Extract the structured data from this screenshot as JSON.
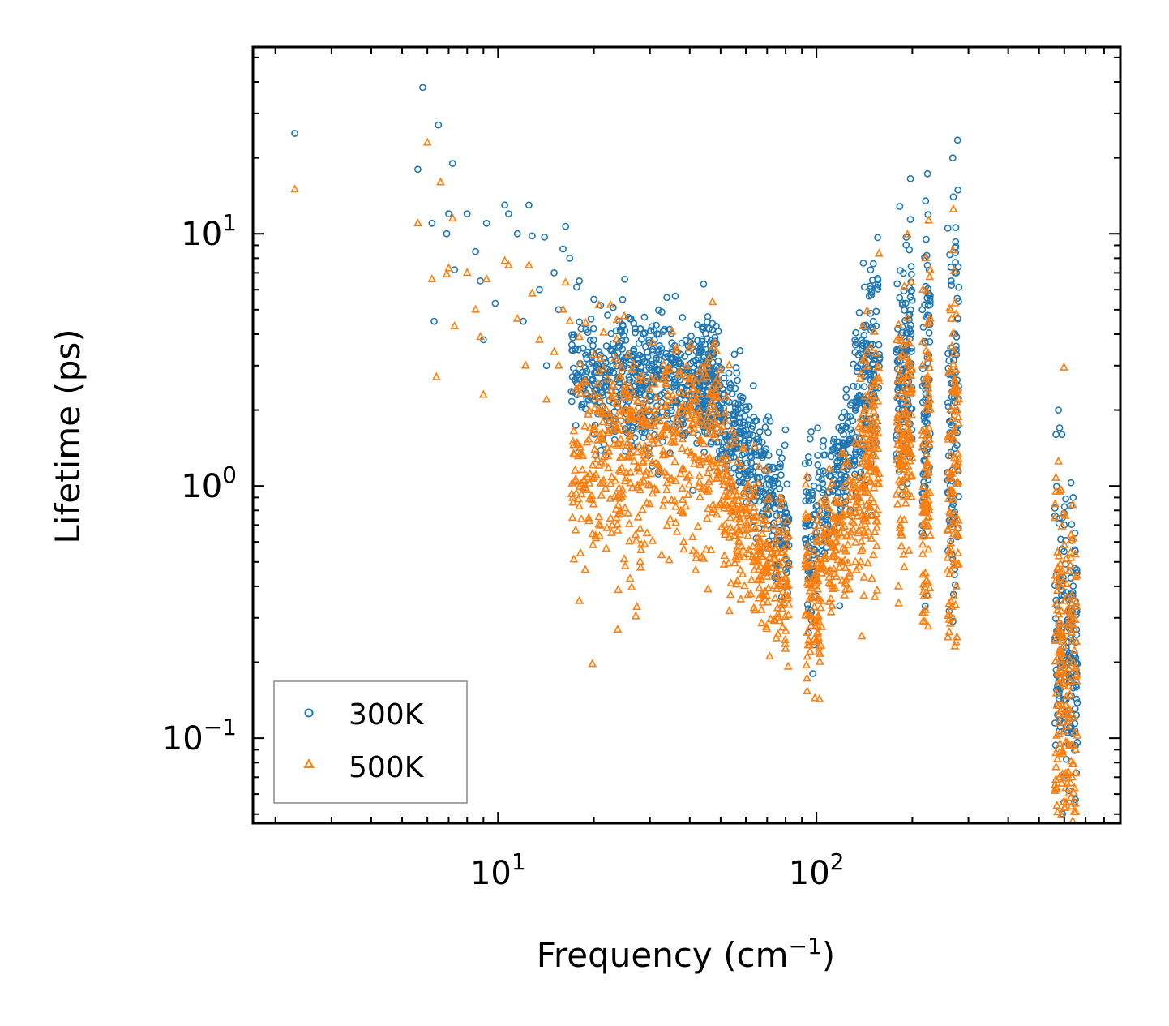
{
  "chart_data": {
    "type": "scatter",
    "xlabel": "Frequency (cm",
    "xlabel_exp": "−1",
    "xlabel_tail": ")",
    "ylabel": "Lifetime (ps)",
    "xscale": "log",
    "yscale": "log",
    "xlim": [
      1.7,
      900
    ],
    "ylim": [
      0.046,
      55
    ],
    "x_ticks": [
      {
        "value": 10,
        "base": "10",
        "exp": "1"
      },
      {
        "value": 100,
        "base": "10",
        "exp": "2"
      }
    ],
    "y_ticks": [
      {
        "value": 0.1,
        "base": "10",
        "exp": "−1"
      },
      {
        "value": 1,
        "base": "10",
        "exp": "0"
      },
      {
        "value": 10,
        "base": "10",
        "exp": "1"
      }
    ],
    "legend": {
      "location": "lower-left"
    },
    "series": [
      {
        "name": "300K",
        "marker": "circle",
        "color": "#1f77b4",
        "points": [
          [
            2.3,
            25
          ],
          [
            5.6,
            18
          ],
          [
            5.8,
            38
          ],
          [
            6.2,
            11
          ],
          [
            6.3,
            4.5
          ],
          [
            6.5,
            27
          ],
          [
            6.9,
            10
          ],
          [
            7.0,
            12
          ],
          [
            7.2,
            19
          ],
          [
            7.3,
            7.2
          ],
          [
            8.0,
            12
          ],
          [
            8.5,
            8.5
          ],
          [
            8.8,
            6.5
          ],
          [
            9.0,
            3.8
          ],
          [
            9.2,
            11
          ],
          [
            9.8,
            5.3
          ],
          [
            10.5,
            13
          ],
          [
            10.8,
            12
          ],
          [
            11.5,
            10
          ],
          [
            12.0,
            4.5
          ],
          [
            12.5,
            13
          ],
          [
            12.8,
            9.8
          ],
          [
            13.5,
            6
          ],
          [
            14.0,
            9.7
          ],
          [
            14.2,
            3
          ],
          [
            15.0,
            7
          ],
          [
            15.5,
            5
          ],
          [
            16.0,
            8.7
          ],
          [
            16.3,
            10.7
          ],
          [
            16.8,
            8
          ],
          [
            17.5,
            3.5
          ],
          [
            18.0,
            6.5
          ],
          [
            19.0,
            3.2
          ],
          [
            20.0,
            5.5
          ],
          [
            21.0,
            5.2
          ],
          [
            22.0,
            2.8
          ],
          [
            24.0,
            4.5
          ],
          [
            25.0,
            6.6
          ],
          [
            26.0,
            4.6
          ],
          [
            28.0,
            4.2
          ],
          [
            31.0,
            3.8
          ],
          [
            32.0,
            4
          ],
          [
            33.0,
            4.1
          ],
          [
            35.0,
            3.2
          ],
          [
            46.5,
            3.6
          ],
          [
            180,
            4.2
          ],
          [
            196,
            4.2
          ],
          [
            215,
            5
          ],
          [
            220,
            13.5
          ],
          [
            221,
            9.5
          ],
          [
            222,
            8.2
          ],
          [
            223,
            7.5
          ],
          [
            225,
            5.8
          ],
          [
            265,
            6.5
          ],
          [
            268,
            20
          ],
          [
            269,
            14
          ],
          [
            270,
            4
          ],
          [
            272,
            8.8
          ],
          [
            275,
            7
          ],
          [
            268,
            0.29
          ],
          [
            272,
            0.47
          ],
          [
            565,
            1.6
          ],
          [
            575,
            2
          ],
          [
            580,
            1.7
          ],
          [
            590,
            1.6
          ],
          [
            600,
            0.7
          ],
          [
            630,
            1.03
          ],
          [
            640,
            0.9
          ],
          [
            648,
            0.65
          ],
          [
            650,
            0.057
          ],
          [
            652,
            0.24
          ]
        ],
        "segments": [
          {
            "x": [
              17,
              50
            ],
            "y": [
              2.8,
              3.0
            ],
            "s": 0.12,
            "n": 420
          },
          {
            "x": [
              20,
              45
            ],
            "y": [
              1.9,
              2.1
            ],
            "s": 0.1,
            "n": 160
          },
          {
            "x": [
              42,
              56
            ],
            "y": [
              2.7,
              1.6
            ],
            "s": 0.12,
            "n": 160
          },
          {
            "x": [
              55,
              82
            ],
            "y": [
              1.7,
              0.62
            ],
            "s": 0.13,
            "n": 260
          },
          {
            "x": [
              92,
              100
            ],
            "y": [
              0.72,
              0.48
            ],
            "s": 0.18,
            "n": 70
          },
          {
            "x": [
              100,
              130
            ],
            "y": [
              0.75,
              1.45
            ],
            "s": 0.12,
            "n": 150
          },
          {
            "x": [
              130,
              158
            ],
            "y": [
              1.8,
              3.4
            ],
            "s": 0.18,
            "n": 170
          },
          {
            "x": [
              178,
              200
            ],
            "y": [
              2.2,
              3.6
            ],
            "s": 0.22,
            "n": 130
          },
          {
            "x": [
              215,
              228
            ],
            "y": [
              1.4,
              3.4
            ],
            "s": 0.35,
            "n": 90
          },
          {
            "x": [
              258,
              280
            ],
            "y": [
              1.2,
              2.8
            ],
            "s": 0.35,
            "n": 100
          },
          {
            "x": [
              560,
              660
            ],
            "y": [
              0.25,
              0.22
            ],
            "s": 0.3,
            "n": 170
          }
        ]
      },
      {
        "name": "500K",
        "marker": "triangle",
        "color": "#ff7f0e",
        "points": [
          [
            2.3,
            15
          ],
          [
            5.6,
            11
          ],
          [
            6.0,
            23
          ],
          [
            6.2,
            6.6
          ],
          [
            6.4,
            2.7
          ],
          [
            6.6,
            16
          ],
          [
            6.9,
            6.9
          ],
          [
            7.0,
            7.3
          ],
          [
            7.2,
            11.5
          ],
          [
            7.3,
            4.3
          ],
          [
            8.0,
            7
          ],
          [
            8.5,
            5
          ],
          [
            8.8,
            3.9
          ],
          [
            9.0,
            2.3
          ],
          [
            9.2,
            6.6
          ],
          [
            10.5,
            7.8
          ],
          [
            10.8,
            7.5
          ],
          [
            11.5,
            4.6
          ],
          [
            12.2,
            3
          ],
          [
            12.5,
            7.5
          ],
          [
            12.8,
            5.8
          ],
          [
            13.5,
            3.8
          ],
          [
            14.2,
            2.2
          ],
          [
            15.0,
            3.4
          ],
          [
            15.5,
            3
          ],
          [
            16.0,
            5
          ],
          [
            16.3,
            6.4
          ],
          [
            16.8,
            4.5
          ],
          [
            17.5,
            2.4
          ],
          [
            18.0,
            3.9
          ],
          [
            19.0,
            2.3
          ],
          [
            20.0,
            3.3
          ],
          [
            21.0,
            3.2
          ],
          [
            24.0,
            2.7
          ],
          [
            25.0,
            2.5
          ],
          [
            46.0,
            2.3
          ],
          [
            120,
            0.63
          ],
          [
            180,
            2.6
          ],
          [
            196,
            2.5
          ],
          [
            215,
            3
          ],
          [
            220,
            8
          ],
          [
            222,
            5.9
          ],
          [
            223,
            4.4
          ],
          [
            225,
            3.2
          ],
          [
            265,
            4.6
          ],
          [
            268,
            8.6
          ],
          [
            269,
            12.5
          ],
          [
            272,
            5.3
          ],
          [
            275,
            4.8
          ],
          [
            268,
            0.3
          ],
          [
            270,
            0.5
          ],
          [
            565,
            0.95
          ],
          [
            575,
            1.25
          ],
          [
            580,
            0.95
          ],
          [
            600,
            0.35
          ],
          [
            630,
            0.64
          ],
          [
            640,
            0.62
          ],
          [
            650,
            0.055
          ],
          [
            652,
            0.09
          ]
        ],
        "segments": [
          {
            "x": [
              17,
              50
            ],
            "y": [
              1.15,
              1.35
            ],
            "s": 0.22,
            "n": 420
          },
          {
            "x": [
              20,
              50
            ],
            "y": [
              2.0,
              2.1
            ],
            "s": 0.1,
            "n": 120
          },
          {
            "x": [
              50,
              82
            ],
            "y": [
              0.98,
              0.36
            ],
            "s": 0.15,
            "n": 280
          },
          {
            "x": [
              92,
              104
            ],
            "y": [
              0.45,
              0.27
            ],
            "s": 0.15,
            "n": 80
          },
          {
            "x": [
              100,
              135
            ],
            "y": [
              0.48,
              0.85
            ],
            "s": 0.14,
            "n": 150
          },
          {
            "x": [
              135,
              158
            ],
            "y": [
              0.9,
              1.7
            ],
            "s": 0.25,
            "n": 150
          },
          {
            "x": [
              178,
              200
            ],
            "y": [
              1.3,
              2.0
            ],
            "s": 0.25,
            "n": 130
          },
          {
            "x": [
              215,
              228
            ],
            "y": [
              0.8,
              2.0
            ],
            "s": 0.35,
            "n": 90
          },
          {
            "x": [
              258,
              280
            ],
            "y": [
              0.75,
              1.6
            ],
            "s": 0.35,
            "n": 100
          },
          {
            "x": [
              560,
              660
            ],
            "y": [
              0.16,
              0.13
            ],
            "s": 0.4,
            "n": 200
          }
        ]
      }
    ]
  }
}
